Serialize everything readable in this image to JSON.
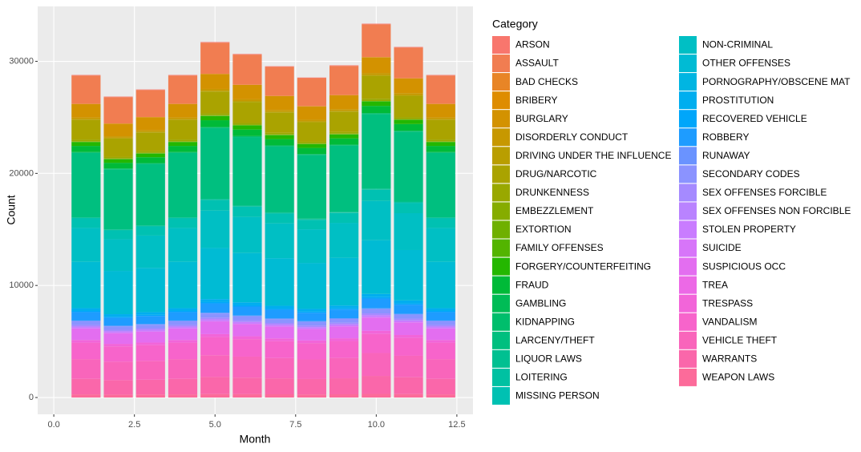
{
  "chart_data": {
    "type": "stacked_bar",
    "x_label": "Month",
    "y_label": "Count",
    "legend_title": "Category",
    "x": [
      1,
      2,
      3,
      4,
      5,
      6,
      7,
      8,
      9,
      10,
      11,
      12
    ],
    "xlim": [
      -0.5,
      13.0
    ],
    "xticks": [
      {
        "value": 0,
        "label": "0.0"
      },
      2.5,
      {
        "value": 5,
        "label": "5.0"
      },
      7.5,
      {
        "value": 10,
        "label": "10.0"
      },
      12.5
    ],
    "ylim": [
      -1500,
      34900
    ],
    "yticks": [
      0,
      10000,
      20000,
      30000
    ],
    "grid": true,
    "legend_position": "right",
    "series": [
      {
        "name": "ARSON",
        "color": "#F8766D",
        "values": [
          50,
          47,
          48,
          50,
          55,
          53,
          51,
          50,
          52,
          58,
          54,
          50
        ]
      },
      {
        "name": "ASSAULT",
        "color": "#F17D51",
        "values": [
          2520,
          2351,
          2407,
          2520,
          2777,
          2684,
          2588,
          2500,
          2596,
          2921,
          2739,
          2520
        ]
      },
      {
        "name": "BAD CHECKS",
        "color": "#E88526",
        "values": [
          13,
          12,
          12,
          13,
          14,
          14,
          13,
          13,
          13,
          15,
          14,
          13
        ]
      },
      {
        "name": "BRIBERY",
        "color": "#DE8C00",
        "values": [
          9,
          8,
          9,
          9,
          10,
          10,
          9,
          9,
          9,
          10,
          10,
          9
        ]
      },
      {
        "name": "BURGLARY",
        "color": "#D39200",
        "values": [
          1205,
          1124,
          1151,
          1205,
          1328,
          1283,
          1238,
          1195,
          1241,
          1397,
          1310,
          1205
        ]
      },
      {
        "name": "DISORDERLY CONDUCT",
        "color": "#C79800",
        "values": [
          142,
          132,
          136,
          142,
          156,
          151,
          146,
          141,
          146,
          165,
          154,
          142
        ]
      },
      {
        "name": "DRIVING UNDER THE INFLUENCE",
        "color": "#B99E00",
        "values": [
          74,
          69,
          71,
          74,
          82,
          79,
          76,
          73,
          76,
          86,
          80,
          74
        ]
      },
      {
        "name": "DRUG/NARCOTIC",
        "color": "#AAA300",
        "values": [
          1769,
          1650,
          1689,
          1769,
          1949,
          1884,
          1817,
          1755,
          1822,
          2050,
          1923,
          1769
        ]
      },
      {
        "name": "DRUNKENNESS",
        "color": "#99A800",
        "values": [
          140,
          131,
          134,
          140,
          154,
          149,
          144,
          139,
          144,
          162,
          152,
          140
        ]
      },
      {
        "name": "EMBEZZLEMENT",
        "color": "#86AC00",
        "values": [
          38,
          35,
          36,
          38,
          42,
          40,
          39,
          38,
          39,
          44,
          41,
          38
        ]
      },
      {
        "name": "EXTORTION",
        "color": "#6FB000",
        "values": [
          8,
          7,
          8,
          8,
          9,
          9,
          8,
          8,
          8,
          9,
          9,
          8
        ]
      },
      {
        "name": "FAMILY OFFENSES",
        "color": "#53B400",
        "values": [
          16,
          15,
          15,
          16,
          18,
          17,
          16,
          16,
          16,
          19,
          17,
          16
        ]
      },
      {
        "name": "FORGERY/COUNTERFEITING",
        "color": "#24B700",
        "values": [
          348,
          325,
          332,
          348,
          383,
          371,
          357,
          345,
          358,
          403,
          378,
          348
        ]
      },
      {
        "name": "FRAUD",
        "color": "#00BA38",
        "values": [
          547,
          510,
          522,
          547,
          603,
          583,
          562,
          543,
          563,
          634,
          595,
          547
        ]
      },
      {
        "name": "GAMBLING",
        "color": "#00BC56",
        "values": [
          5,
          5,
          5,
          5,
          6,
          5,
          5,
          5,
          5,
          6,
          5,
          5
        ]
      },
      {
        "name": "KIDNAPPING",
        "color": "#00BE6C",
        "values": [
          77,
          72,
          74,
          77,
          85,
          82,
          79,
          76,
          79,
          89,
          84,
          77
        ]
      },
      {
        "name": "LARCENY/THEFT",
        "color": "#00BF7F",
        "values": [
          5733,
          5349,
          5475,
          5733,
          6318,
          6106,
          5888,
          5687,
          5905,
          6645,
          6232,
          5733
        ]
      },
      {
        "name": "LIQUOR LAWS",
        "color": "#00C091",
        "values": [
          62,
          58,
          59,
          62,
          68,
          66,
          64,
          62,
          64,
          72,
          67,
          62
        ]
      },
      {
        "name": "LOITERING",
        "color": "#00C1A2",
        "values": [
          40,
          37,
          38,
          40,
          44,
          43,
          41,
          40,
          41,
          46,
          43,
          40
        ]
      },
      {
        "name": "MISSING PERSON",
        "color": "#00C1B2",
        "values": [
          852,
          795,
          814,
          852,
          939,
          907,
          875,
          845,
          878,
          987,
          926,
          852
        ]
      },
      {
        "name": "NON-CRIMINAL",
        "color": "#00BFC4",
        "values": [
          3026,
          2823,
          2890,
          3026,
          3335,
          3223,
          3108,
          3002,
          3117,
          3507,
          3289,
          3026
        ]
      },
      {
        "name": "OTHER OFFENSES",
        "color": "#00BBD4",
        "values": [
          4136,
          3859,
          3950,
          4136,
          4558,
          4405,
          4248,
          4103,
          4260,
          4794,
          4496,
          4136
        ]
      },
      {
        "name": "PORNOGRAPHY/OBSCENE MAT",
        "color": "#00B5E2",
        "values": [
          1,
          1,
          1,
          1,
          1,
          1,
          1,
          1,
          1,
          1,
          1,
          1
        ]
      },
      {
        "name": "PROSTITUTION",
        "color": "#00AEEF",
        "values": [
          245,
          229,
          234,
          245,
          270,
          261,
          252,
          243,
          252,
          284,
          266,
          245
        ]
      },
      {
        "name": "RECOVERED VEHICLE",
        "color": "#00A6FA",
        "values": [
          103,
          96,
          98,
          103,
          114,
          110,
          106,
          102,
          106,
          119,
          112,
          103
        ]
      },
      {
        "name": "ROBBERY",
        "color": "#1E9CFF",
        "values": [
          754,
          703,
          720,
          754,
          831,
          803,
          774,
          748,
          777,
          874,
          820,
          754
        ]
      },
      {
        "name": "RUNAWAY",
        "color": "#6A93FF",
        "values": [
          64,
          60,
          61,
          64,
          71,
          68,
          66,
          63,
          66,
          74,
          70,
          64
        ]
      },
      {
        "name": "SECONDARY CODES",
        "color": "#8B93FF",
        "values": [
          327,
          305,
          312,
          327,
          360,
          348,
          336,
          324,
          337,
          379,
          355,
          327
        ]
      },
      {
        "name": "SEX OFFENSES FORCIBLE",
        "color": "#A58AFF",
        "values": [
          144,
          134,
          138,
          144,
          159,
          153,
          148,
          143,
          148,
          167,
          157,
          144
        ]
      },
      {
        "name": "SEX OFFENSES NON FORCIBLE",
        "color": "#B983FF",
        "values": [
          5,
          5,
          5,
          5,
          6,
          5,
          5,
          5,
          5,
          6,
          5,
          5
        ]
      },
      {
        "name": "STOLEN PROPERTY",
        "color": "#C97CFF",
        "values": [
          149,
          139,
          142,
          149,
          164,
          159,
          153,
          148,
          153,
          173,
          162,
          149
        ]
      },
      {
        "name": "SUICIDE",
        "color": "#D775F9",
        "values": [
          17,
          16,
          16,
          17,
          19,
          18,
          17,
          17,
          18,
          20,
          18,
          17
        ]
      },
      {
        "name": "SUSPICIOUS OCC",
        "color": "#E36EF0",
        "values": [
          1030,
          961,
          984,
          1030,
          1135,
          1097,
          1058,
          1022,
          1061,
          1194,
          1120,
          1030
        ]
      },
      {
        "name": "TREA",
        "color": "#EC69E6",
        "values": [
          0,
          0,
          0,
          0,
          0,
          0,
          0,
          0,
          0,
          0,
          0,
          0
        ]
      },
      {
        "name": "TRESPASS",
        "color": "#F265D9",
        "values": [
          240,
          224,
          229,
          240,
          264,
          256,
          246,
          238,
          247,
          278,
          261,
          240
        ]
      },
      {
        "name": "VANDALISM",
        "color": "#F764CB",
        "values": [
          1466,
          1368,
          1400,
          1466,
          1616,
          1561,
          1506,
          1454,
          1510,
          1699,
          1594,
          1466
        ]
      },
      {
        "name": "VEHICLE THEFT",
        "color": "#F965BB",
        "values": [
          1763,
          1645,
          1684,
          1763,
          1943,
          1878,
          1811,
          1749,
          1816,
          2043,
          1916,
          1763
        ]
      },
      {
        "name": "WARRANTS",
        "color": "#FA67AA",
        "values": [
          1384,
          1291,
          1322,
          1384,
          1525,
          1474,
          1421,
          1373,
          1426,
          1604,
          1504,
          1384
        ]
      },
      {
        "name": "WEAPON LAWS",
        "color": "#FC6B9A",
        "values": [
          280,
          261,
          267,
          280,
          309,
          298,
          288,
          278,
          288,
          325,
          304,
          280
        ]
      }
    ]
  }
}
